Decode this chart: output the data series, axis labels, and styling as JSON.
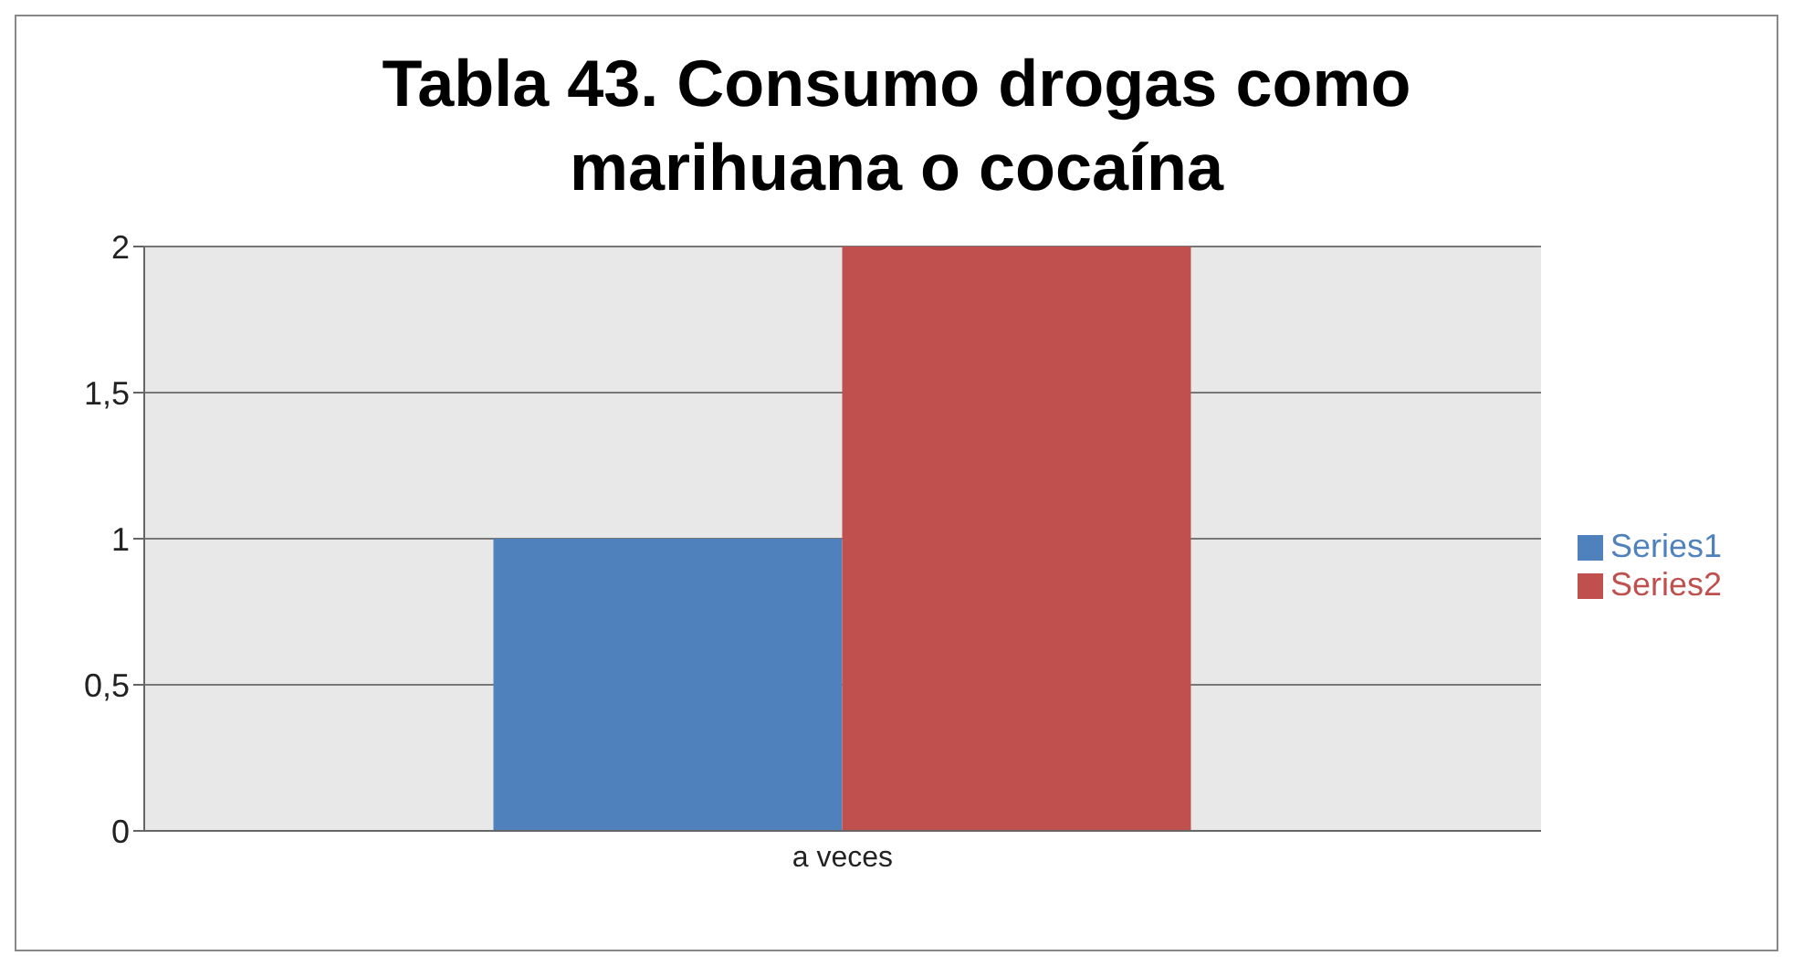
{
  "chart_data": {
    "type": "bar",
    "title": "Tabla 43. Consumo drogas como marihuana o cocaína",
    "categories": [
      "a veces"
    ],
    "series": [
      {
        "name": "Series1",
        "color": "#4f81bd",
        "values": [
          1
        ]
      },
      {
        "name": "Series2",
        "color": "#c0504d",
        "values": [
          2
        ]
      }
    ],
    "ylim": [
      0,
      2
    ],
    "yticks": [
      0,
      {
        "value": 0.5,
        "label": "0,5"
      },
      1,
      {
        "value": 1.5,
        "label": "1,5"
      },
      2
    ],
    "grid": "y",
    "legend": "right"
  }
}
